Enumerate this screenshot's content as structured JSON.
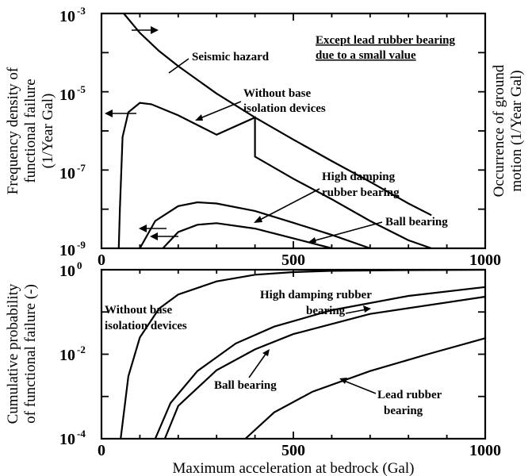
{
  "chart_data": [
    {
      "type": "line",
      "xlim": [
        0,
        1000
      ],
      "ylim_exponent": [
        -9,
        -3
      ],
      "log_y": true,
      "x_tick_labels": [
        "0",
        "500",
        "1000"
      ],
      "y_tick_labels": [
        {
          "base": "10",
          "exp": "-3"
        },
        {
          "base": "10",
          "exp": "-5"
        },
        {
          "base": "10",
          "exp": "-7"
        },
        {
          "base": "10",
          "exp": "-9"
        }
      ],
      "y_tick_values": [
        0.001,
        1e-05,
        1e-07,
        1e-09
      ],
      "ylabel_left": [
        "Frequency density of",
        "functional failure",
        "(1/Year  Gal)"
      ],
      "ylabel_right": [
        "Occurrence of ground",
        "motion (1/Year  Gal)"
      ],
      "note": [
        "Except lead rubber bearing",
        "due to a small value"
      ],
      "series": [
        {
          "label": "Seismic hazard",
          "points": [
            [
              58,
              0.001
            ],
            [
              100,
              0.00032
            ],
            [
              150,
              0.00011
            ],
            [
              200,
              4.5e-05
            ],
            [
              300,
              9e-06
            ],
            [
              400,
              2.2e-06
            ],
            [
              500,
              6e-07
            ],
            [
              600,
              1.7e-07
            ],
            [
              700,
              5e-08
            ],
            [
              800,
              1.4e-08
            ],
            [
              860,
              7e-09
            ]
          ]
        },
        {
          "label": [
            "Without base",
            "isolation devices"
          ],
          "points": [
            [
              45,
              1e-09
            ],
            [
              48,
              1e-08
            ],
            [
              55,
              7e-07
            ],
            [
              70,
              3e-06
            ],
            [
              100,
              5.2e-06
            ],
            [
              130,
              4.8e-06
            ],
            [
              200,
              2.5e-06
            ],
            [
              300,
              8e-07
            ],
            [
              400,
              2.2e-06
            ],
            [
              400,
              2.2e-07
            ],
            [
              500,
              6e-08
            ],
            [
              600,
              1.8e-08
            ],
            [
              700,
              5e-09
            ],
            [
              800,
              1.6e-09
            ],
            [
              860,
              1e-09
            ]
          ]
        },
        {
          "label": [
            "High damping",
            "rubber bearing"
          ],
          "points": [
            [
              100,
              1e-09
            ],
            [
              140,
              5e-09
            ],
            [
              200,
              1.2e-08
            ],
            [
              250,
              1.5e-08
            ],
            [
              300,
              1.4e-08
            ],
            [
              400,
              9e-09
            ],
            [
              500,
              4.5e-09
            ],
            [
              600,
              2.2e-09
            ],
            [
              700,
              1e-09
            ]
          ]
        },
        {
          "label": "Ball bearing",
          "points": [
            [
              160,
              1e-09
            ],
            [
              200,
              2.6e-09
            ],
            [
              250,
              4e-09
            ],
            [
              300,
              4.4e-09
            ],
            [
              400,
              3.2e-09
            ],
            [
              500,
              1.8e-09
            ],
            [
              600,
              1e-09
            ]
          ]
        }
      ]
    },
    {
      "type": "line",
      "xlim": [
        0,
        1000
      ],
      "ylim_exponent": [
        -4,
        0
      ],
      "log_y": true,
      "x_tick_labels": [
        "0",
        "500",
        "1000"
      ],
      "y_tick_labels": [
        {
          "base": "10",
          "exp": "0"
        },
        {
          "base": "10",
          "exp": "-2"
        },
        {
          "base": "10",
          "exp": "-4"
        }
      ],
      "y_tick_values": [
        1,
        0.01,
        0.0001
      ],
      "ylabel_left": [
        "Cumulative probability",
        "of functional failure  (-)"
      ],
      "xlabel": "Maximum acceleration at bedrock (Gal)",
      "series": [
        {
          "label": [
            "Without   base",
            "isolation devices"
          ],
          "points": [
            [
              50,
              0.0001
            ],
            [
              70,
              0.003
            ],
            [
              100,
              0.025
            ],
            [
              150,
              0.12
            ],
            [
              200,
              0.26
            ],
            [
              300,
              0.53
            ],
            [
              400,
              0.76
            ],
            [
              500,
              0.88
            ],
            [
              600,
              0.94
            ],
            [
              800,
              0.98
            ],
            [
              1000,
              1
            ]
          ]
        },
        {
          "label": [
            "High damping rubber",
            "bearing"
          ],
          "points": [
            [
              140,
              0.0001
            ],
            [
              180,
              0.0007
            ],
            [
              250,
              0.004
            ],
            [
              350,
              0.018
            ],
            [
              450,
              0.045
            ],
            [
              600,
              0.11
            ],
            [
              800,
              0.24
            ],
            [
              1000,
              0.39
            ]
          ]
        },
        {
          "label": "Ball bearing",
          "points": [
            [
              165,
              0.0001
            ],
            [
              200,
              0.0006
            ],
            [
              300,
              0.0042
            ],
            [
              400,
              0.013
            ],
            [
              500,
              0.03
            ],
            [
              700,
              0.09
            ],
            [
              1000,
              0.23
            ]
          ]
        },
        {
          "label": [
            "Lead rubber",
            "bearing"
          ],
          "points": [
            [
              375,
              0.0001
            ],
            [
              450,
              0.00042
            ],
            [
              550,
              0.0013
            ],
            [
              700,
              0.004
            ],
            [
              850,
              0.01
            ],
            [
              1000,
              0.024
            ]
          ]
        }
      ]
    }
  ]
}
